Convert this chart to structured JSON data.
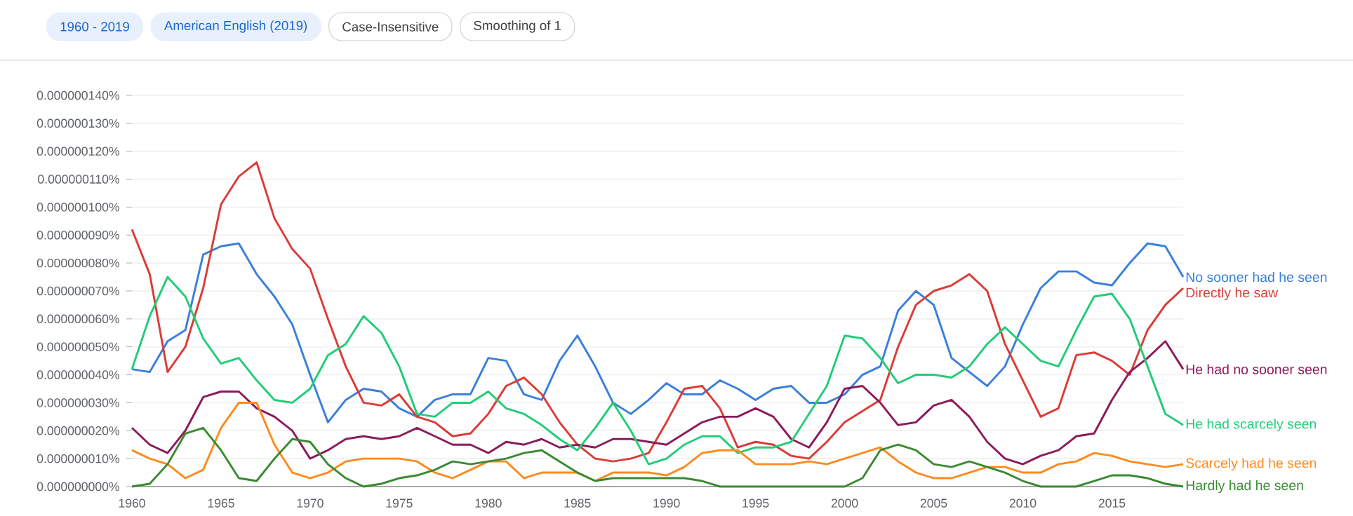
{
  "chart_data": {
    "type": "line",
    "marker": "none",
    "legend": false,
    "grid": "y",
    "annotations": [
      "1960 - 2019",
      "American English (2019)",
      "Case-Insensitive",
      "Smoothing of 1"
    ],
    "x": [
      1960,
      1961,
      1962,
      1963,
      1964,
      1965,
      1966,
      1967,
      1968,
      1969,
      1970,
      1971,
      1972,
      1973,
      1974,
      1975,
      1976,
      1977,
      1978,
      1979,
      1980,
      1981,
      1982,
      1983,
      1984,
      1985,
      1986,
      1987,
      1988,
      1989,
      1990,
      1991,
      1992,
      1993,
      1994,
      1995,
      1996,
      1997,
      1998,
      1999,
      2000,
      2001,
      2002,
      2003,
      2004,
      2005,
      2006,
      2007,
      2008,
      2009,
      2010,
      2011,
      2012,
      2013,
      2014,
      2015,
      2016,
      2017,
      2018,
      2019
    ],
    "xlim": [
      1960,
      2019
    ],
    "xticks": [
      1960,
      1965,
      1970,
      1975,
      1980,
      1985,
      1990,
      1995,
      2000,
      2005,
      2010,
      2015
    ],
    "ylim": [
      0,
      1.4e-07
    ],
    "yticks": [
      {
        "value": 0,
        "label": "0.000000000%"
      },
      {
        "value": 1e-08,
        "label": "0.000000010%"
      },
      {
        "value": 2e-08,
        "label": "0.000000020%"
      },
      {
        "value": 3e-08,
        "label": "0.000000030%"
      },
      {
        "value": 4e-08,
        "label": "0.000000040%"
      },
      {
        "value": 5e-08,
        "label": "0.000000050%"
      },
      {
        "value": 6e-08,
        "label": "0.000000060%"
      },
      {
        "value": 7e-08,
        "label": "0.000000070%"
      },
      {
        "value": 8e-08,
        "label": "0.000000080%"
      },
      {
        "value": 9e-08,
        "label": "0.000000090%"
      },
      {
        "value": 1e-07,
        "label": "0.000000100%"
      },
      {
        "value": 1.1e-07,
        "label": "0.000000110%"
      },
      {
        "value": 1.2e-07,
        "label": "0.000000120%"
      },
      {
        "value": 1.3e-07,
        "label": "0.000000130%"
      },
      {
        "value": 1.4e-07,
        "label": "0.000000140%"
      }
    ],
    "series": [
      {
        "name": "No sooner had he seen",
        "color": "#3a7fdc",
        "values": [
          4.2e-08,
          4.1e-08,
          5.2e-08,
          5.6e-08,
          8.3e-08,
          8.6e-08,
          8.7e-08,
          7.6e-08,
          6.8e-08,
          5.8e-08,
          4e-08,
          2.3e-08,
          3.1e-08,
          3.5e-08,
          3.4e-08,
          2.8e-08,
          2.5e-08,
          3.1e-08,
          3.3e-08,
          3.3e-08,
          4.6e-08,
          4.5e-08,
          3.3e-08,
          3.1e-08,
          4.5e-08,
          5.4e-08,
          4.3e-08,
          3e-08,
          2.6e-08,
          3.1e-08,
          3.7e-08,
          3.3e-08,
          3.3e-08,
          3.8e-08,
          3.5e-08,
          3.1e-08,
          3.5e-08,
          3.6e-08,
          3e-08,
          3e-08,
          3.3e-08,
          4e-08,
          4.3e-08,
          6.3e-08,
          7e-08,
          6.5e-08,
          4.6e-08,
          4.1e-08,
          3.6e-08,
          4.3e-08,
          5.8e-08,
          7.1e-08,
          7.7e-08,
          7.7e-08,
          7.3e-08,
          7.2e-08,
          8e-08,
          8.7e-08,
          8.6e-08,
          7.5e-08
        ]
      },
      {
        "name": "Directly he saw",
        "color": "#dc3b36",
        "values": [
          9.2e-08,
          7.6e-08,
          4.1e-08,
          5e-08,
          7.1e-08,
          1.01e-07,
          1.11e-07,
          1.16e-07,
          9.6e-08,
          8.5e-08,
          7.8e-08,
          6e-08,
          4.3e-08,
          3e-08,
          2.9e-08,
          3.3e-08,
          2.5e-08,
          2.3e-08,
          1.8e-08,
          1.9e-08,
          2.6e-08,
          3.6e-08,
          3.9e-08,
          3.3e-08,
          2.3e-08,
          1.5e-08,
          1e-08,
          9e-09,
          1e-08,
          1.2e-08,
          2.3e-08,
          3.5e-08,
          3.6e-08,
          2.8e-08,
          1.4e-08,
          1.6e-08,
          1.5e-08,
          1.1e-08,
          1e-08,
          1.6e-08,
          2.3e-08,
          2.7e-08,
          3.1e-08,
          5e-08,
          6.5e-08,
          7e-08,
          7.2e-08,
          7.6e-08,
          7e-08,
          5.1e-08,
          3.8e-08,
          2.5e-08,
          2.8e-08,
          4.7e-08,
          4.8e-08,
          4.5e-08,
          4e-08,
          5.6e-08,
          6.5e-08,
          7.1e-08
        ]
      },
      {
        "name": "He had no sooner seen",
        "color": "#8c1b5a",
        "values": [
          2.1e-08,
          1.5e-08,
          1.2e-08,
          2e-08,
          3.2e-08,
          3.4e-08,
          3.4e-08,
          2.8e-08,
          2.5e-08,
          2e-08,
          1e-08,
          1.3e-08,
          1.7e-08,
          1.8e-08,
          1.7e-08,
          1.8e-08,
          2.1e-08,
          1.8e-08,
          1.5e-08,
          1.5e-08,
          1.2e-08,
          1.6e-08,
          1.5e-08,
          1.7e-08,
          1.4e-08,
          1.5e-08,
          1.4e-08,
          1.7e-08,
          1.7e-08,
          1.6e-08,
          1.5e-08,
          1.9e-08,
          2.3e-08,
          2.5e-08,
          2.5e-08,
          2.8e-08,
          2.5e-08,
          1.7e-08,
          1.4e-08,
          2.3e-08,
          3.5e-08,
          3.6e-08,
          3e-08,
          2.2e-08,
          2.3e-08,
          2.9e-08,
          3.1e-08,
          2.5e-08,
          1.6e-08,
          1e-08,
          8e-09,
          1.1e-08,
          1.3e-08,
          1.8e-08,
          1.9e-08,
          3.1e-08,
          4.1e-08,
          4.6e-08,
          5.2e-08,
          4.2e-08
        ]
      },
      {
        "name": "He had scarcely seen",
        "color": "#22cc78",
        "values": [
          4.2e-08,
          6.1e-08,
          7.5e-08,
          6.8e-08,
          5.3e-08,
          4.4e-08,
          4.6e-08,
          3.8e-08,
          3.1e-08,
          3e-08,
          3.5e-08,
          4.7e-08,
          5.1e-08,
          6.1e-08,
          5.5e-08,
          4.3e-08,
          2.6e-08,
          2.5e-08,
          3e-08,
          3e-08,
          3.4e-08,
          2.8e-08,
          2.6e-08,
          2.2e-08,
          1.7e-08,
          1.3e-08,
          2.1e-08,
          3e-08,
          2e-08,
          8e-09,
          1e-08,
          1.5e-08,
          1.8e-08,
          1.8e-08,
          1.2e-08,
          1.4e-08,
          1.4e-08,
          1.6e-08,
          2.6e-08,
          3.6e-08,
          5.4e-08,
          5.3e-08,
          4.6e-08,
          3.7e-08,
          4e-08,
          4e-08,
          3.9e-08,
          4.3e-08,
          5.1e-08,
          5.7e-08,
          5.1e-08,
          4.5e-08,
          4.3e-08,
          5.6e-08,
          6.8e-08,
          6.9e-08,
          6e-08,
          4.3e-08,
          2.6e-08,
          2.2e-08
        ]
      },
      {
        "name": "Scarcely had he seen",
        "color": "#ff8a1e",
        "values": [
          1.3e-08,
          1e-08,
          8e-09,
          3e-09,
          6e-09,
          2.1e-08,
          3e-08,
          3e-08,
          1.5e-08,
          5e-09,
          3e-09,
          5e-09,
          9e-09,
          1e-08,
          1e-08,
          1e-08,
          9e-09,
          5e-09,
          3e-09,
          6e-09,
          9e-09,
          9e-09,
          3e-09,
          5e-09,
          5e-09,
          5e-09,
          2e-09,
          5e-09,
          5e-09,
          5e-09,
          4e-09,
          7e-09,
          1.2e-08,
          1.3e-08,
          1.3e-08,
          8e-09,
          8e-09,
          8e-09,
          9e-09,
          8e-09,
          1e-08,
          1.2e-08,
          1.4e-08,
          9e-09,
          5e-09,
          3e-09,
          3e-09,
          5e-09,
          7e-09,
          7e-09,
          5e-09,
          5e-09,
          8e-09,
          9e-09,
          1.2e-08,
          1.1e-08,
          9e-09,
          8e-09,
          7e-09,
          8e-09
        ]
      },
      {
        "name": "Hardly had he seen",
        "color": "#3a8a32",
        "values": [
          0,
          1e-09,
          8e-09,
          1.9e-08,
          2.1e-08,
          1.3e-08,
          3e-09,
          2e-09,
          1e-08,
          1.7e-08,
          1.6e-08,
          8e-09,
          3e-09,
          0,
          1e-09,
          3e-09,
          4e-09,
          6e-09,
          9e-09,
          8e-09,
          9e-09,
          1e-08,
          1.2e-08,
          1.3e-08,
          9e-09,
          5e-09,
          2e-09,
          3e-09,
          3e-09,
          3e-09,
          3e-09,
          3e-09,
          2e-09,
          0,
          0,
          0,
          0,
          0,
          0,
          0,
          0,
          3e-09,
          1.3e-08,
          1.5e-08,
          1.3e-08,
          8e-09,
          7e-09,
          9e-09,
          7e-09,
          5e-09,
          2e-09,
          0,
          0,
          0,
          2e-09,
          4e-09,
          4e-09,
          3e-09,
          1e-09,
          0
        ]
      }
    ]
  }
}
